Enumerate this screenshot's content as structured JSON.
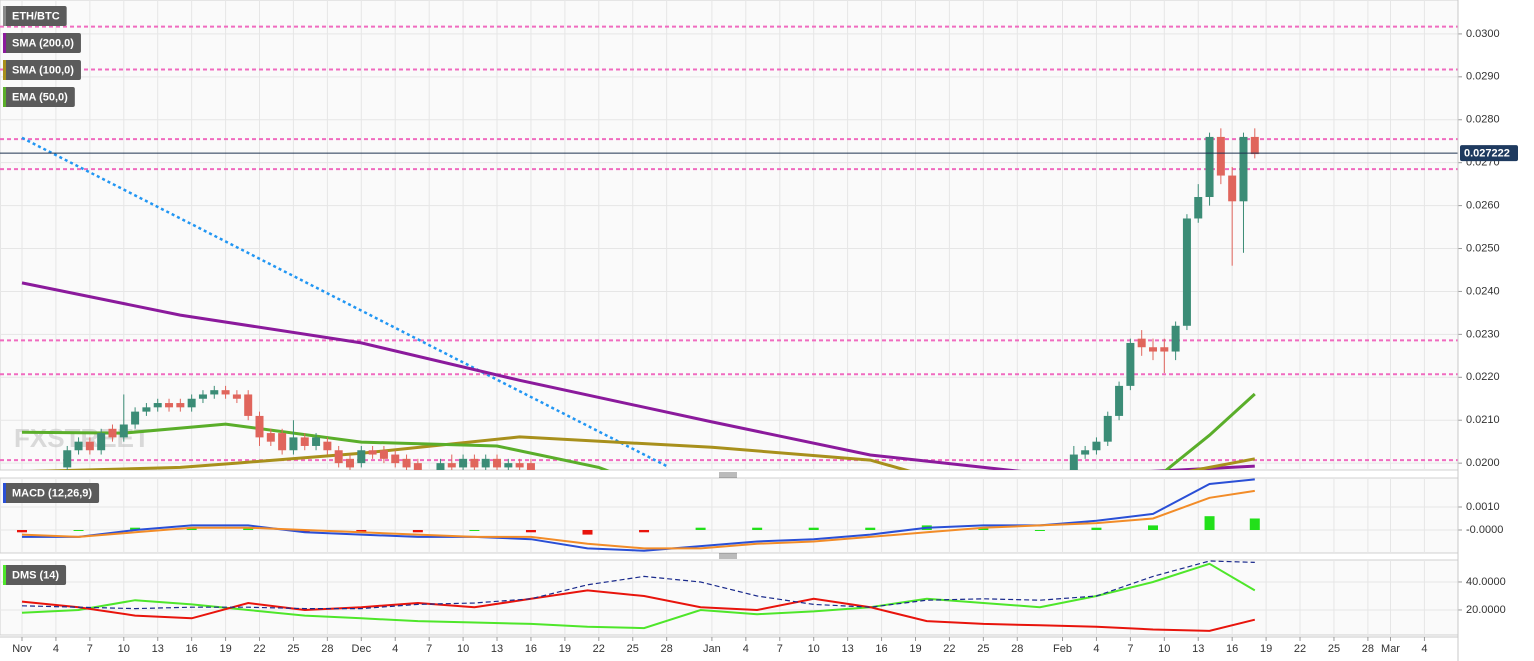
{
  "chart_data": [
    {
      "type": "candlestick",
      "title": "ETH/BTC",
      "watermark": "FXSTREET",
      "up_color": "#3b8c76",
      "down_color": "#e0655c",
      "ylim": [
        0.01984,
        0.03079
      ],
      "yticks": [
        {
          "value": 0.02,
          "label": "0.0200"
        },
        {
          "value": 0.021,
          "label": "0.0210"
        },
        {
          "value": 0.022,
          "label": "0.0220"
        },
        {
          "value": 0.023,
          "label": "0.0230"
        },
        {
          "value": 0.024,
          "label": "0.0240"
        },
        {
          "value": 0.025,
          "label": "0.0250"
        },
        {
          "value": 0.026,
          "label": "0.0260"
        },
        {
          "value": 0.027,
          "label": "0.0270"
        },
        {
          "value": 0.028,
          "label": "0.0280"
        },
        {
          "value": 0.029,
          "label": "0.0290"
        },
        {
          "value": 0.03,
          "label": "0.0300"
        }
      ],
      "x": [
        "Nov 5",
        "Nov 6",
        "Nov 7",
        "Nov 8",
        "Nov 9",
        "Nov 10",
        "Nov 11",
        "Nov 12",
        "Nov 13",
        "Nov 14",
        "Nov 15",
        "Nov 16",
        "Nov 17",
        "Nov 18",
        "Nov 19",
        "Nov 20",
        "Nov 21",
        "Nov 22",
        "Nov 23",
        "Nov 24",
        "Nov 25",
        "Nov 26",
        "Nov 27",
        "Nov 28",
        "Nov 29",
        "Nov 30",
        "Dec 1",
        "Dec 2",
        "Dec 3",
        "Dec 4",
        "Dec 5",
        "Dec 6",
        "Dec 8",
        "Dec 9",
        "Dec 10",
        "Dec 11",
        "Dec 12",
        "Dec 13",
        "Dec 14",
        "Dec 15",
        "Dec 16",
        "Feb 2",
        "Feb 3",
        "Feb 4",
        "Feb 5",
        "Feb 6",
        "Feb 7",
        "Feb 8",
        "Feb 9",
        "Feb 10",
        "Feb 11",
        "Feb 12",
        "Feb 13",
        "Feb 14",
        "Feb 15",
        "Feb 16",
        "Feb 17",
        "Feb 18"
      ],
      "ohlc": [
        [
          0.0199,
          0.0204,
          0.0198,
          0.0203
        ],
        [
          0.0203,
          0.0206,
          0.0202,
          0.0205
        ],
        [
          0.0205,
          0.0206,
          0.0202,
          0.0203
        ],
        [
          0.0203,
          0.0208,
          0.0202,
          0.0207
        ],
        [
          0.0208,
          0.0209,
          0.0205,
          0.0206
        ],
        [
          0.0206,
          0.0216,
          0.0205,
          0.0209
        ],
        [
          0.0209,
          0.0213,
          0.0208,
          0.0212
        ],
        [
          0.0212,
          0.0214,
          0.0211,
          0.0213
        ],
        [
          0.0213,
          0.0215,
          0.0212,
          0.0214
        ],
        [
          0.0214,
          0.0215,
          0.0212,
          0.0213
        ],
        [
          0.0214,
          0.0215,
          0.0212,
          0.0213
        ],
        [
          0.0213,
          0.0216,
          0.0212,
          0.0215
        ],
        [
          0.0215,
          0.0217,
          0.0214,
          0.0216
        ],
        [
          0.0216,
          0.0218,
          0.0215,
          0.0217
        ],
        [
          0.0217,
          0.0218,
          0.0215,
          0.0216
        ],
        [
          0.0216,
          0.0217,
          0.0214,
          0.0215
        ],
        [
          0.0216,
          0.0217,
          0.021,
          0.0211
        ],
        [
          0.0211,
          0.0212,
          0.0204,
          0.0206
        ],
        [
          0.0207,
          0.0208,
          0.0204,
          0.0205
        ],
        [
          0.0207,
          0.0208,
          0.0202,
          0.0203
        ],
        [
          0.0203,
          0.021,
          0.0202,
          0.0206
        ],
        [
          0.0206,
          0.0207,
          0.0203,
          0.0204
        ],
        [
          0.0204,
          0.0207,
          0.0203,
          0.0206
        ],
        [
          0.0205,
          0.0206,
          0.0202,
          0.0203
        ],
        [
          0.0203,
          0.0204,
          0.0199,
          0.02
        ],
        [
          0.0201,
          0.0202,
          0.0198,
          0.0199
        ],
        [
          0.02,
          0.0204,
          0.0199,
          0.0203
        ],
        [
          0.0203,
          0.0204,
          0.0201,
          0.0202
        ],
        [
          0.0203,
          0.0204,
          0.02,
          0.0201
        ],
        [
          0.0202,
          0.0203,
          0.0199,
          0.02
        ],
        [
          0.0201,
          0.0202,
          0.0198,
          0.0199
        ],
        [
          0.02,
          0.0201,
          0.0197,
          0.0198
        ],
        [
          0.0198,
          0.0201,
          0.0197,
          0.02
        ],
        [
          0.02,
          0.0202,
          0.0198,
          0.0199
        ],
        [
          0.0199,
          0.0202,
          0.0198,
          0.0201
        ],
        [
          0.0201,
          0.0202,
          0.0198,
          0.0199
        ],
        [
          0.0199,
          0.0202,
          0.0198,
          0.0201
        ],
        [
          0.0201,
          0.0202,
          0.0198,
          0.0199
        ],
        [
          0.0199,
          0.0201,
          0.0198,
          0.02
        ],
        [
          0.02,
          0.0201,
          0.0198,
          0.0199
        ],
        [
          0.02,
          0.0201,
          0.0197,
          0.0198
        ],
        [
          0.0198,
          0.0204,
          0.0197,
          0.0202
        ],
        [
          0.0202,
          0.0204,
          0.0201,
          0.0203
        ],
        [
          0.0203,
          0.0206,
          0.0202,
          0.0205
        ],
        [
          0.0205,
          0.0212,
          0.0204,
          0.0211
        ],
        [
          0.0211,
          0.0219,
          0.021,
          0.0218
        ],
        [
          0.0218,
          0.0229,
          0.0217,
          0.0228
        ],
        [
          0.0229,
          0.0231,
          0.0225,
          0.0227
        ],
        [
          0.0227,
          0.0229,
          0.0224,
          0.0226
        ],
        [
          0.0227,
          0.0229,
          0.0221,
          0.0226
        ],
        [
          0.0226,
          0.0233,
          0.0224,
          0.0232
        ],
        [
          0.0232,
          0.0258,
          0.0231,
          0.0257
        ],
        [
          0.0257,
          0.0265,
          0.0256,
          0.0262
        ],
        [
          0.0262,
          0.0277,
          0.026,
          0.0276
        ],
        [
          0.0276,
          0.0278,
          0.0265,
          0.0267
        ],
        [
          0.0267,
          0.0269,
          0.0246,
          0.0261
        ],
        [
          0.0261,
          0.0277,
          0.0249,
          0.0276
        ],
        [
          0.0276,
          0.0278,
          0.0271,
          0.0272
        ]
      ],
      "series": [
        {
          "name": "SMA (200,0)",
          "color": "#8b1a9c",
          "x": [
            "Nov 1",
            "Nov 15",
            "Dec 1",
            "Dec 15",
            "Jan 1",
            "Jan 15",
            "Feb 1",
            "Feb 18"
          ],
          "values": [
            0.0242,
            0.02345,
            0.0228,
            0.02193,
            0.02096,
            0.02019,
            0.0197,
            0.01993
          ]
        },
        {
          "name": "SMA (100,0)",
          "color": "#a8901c",
          "x": [
            "Nov 1",
            "Nov 15",
            "Nov 20",
            "Dec 1",
            "Dec 15",
            "Jan 1",
            "Jan 15",
            "Jan 20",
            "Feb 8",
            "Feb 14",
            "Feb 18"
          ],
          "values": [
            0.0198,
            0.0199,
            0.02,
            0.02023,
            0.02061,
            0.02037,
            0.02007,
            0.0197,
            0.0196,
            0.0199,
            0.0201
          ]
        },
        {
          "name": "EMA (50,0)",
          "color": "#5aae2a",
          "x": [
            "Nov 1",
            "Nov 10",
            "Nov 19",
            "Dec 1",
            "Dec 13",
            "Dec 22",
            "Dec 25",
            "Feb 10",
            "Feb 14",
            "Feb 18"
          ],
          "values": [
            0.02072,
            0.0207,
            0.02091,
            0.02049,
            0.0204,
            0.0199,
            0.0196,
            0.0198,
            0.02065,
            0.02161
          ]
        }
      ],
      "trendline": {
        "color": "#2196f3",
        "x": [
          "Nov 1",
          "Dec 28"
        ],
        "values": [
          0.02758,
          0.01993
        ]
      },
      "levels": [
        0.03017,
        0.02917,
        0.02755,
        0.02685,
        0.02286,
        0.02207,
        0.02007
      ],
      "level_color": "#f06bbf",
      "last_price": 0.027222
    },
    {
      "type": "macd",
      "title": "MACD (12,26,9)",
      "x": [
        "Nov 1",
        "Nov 6",
        "Nov 11",
        "Nov 16",
        "Nov 21",
        "Nov 26",
        "Dec 1",
        "Dec 6",
        "Dec 11",
        "Dec 16",
        "Dec 21",
        "Dec 26",
        "Dec 31",
        "Jan 5",
        "Jan 10",
        "Jan 15",
        "Jan 20",
        "Jan 25",
        "Jan 30",
        "Feb 4",
        "Feb 9",
        "Feb 14",
        "Feb 18"
      ],
      "ylim": [
        -0.001,
        0.00226
      ],
      "yticks": [
        {
          "value": 0.001,
          "label": "0.0010"
        },
        {
          "value": 0,
          "label": "-0.0000"
        }
      ],
      "lines": [
        {
          "color": "#2a4fd6",
          "values": [
            -0.0003,
            -0.0003,
            0.0,
            0.0002,
            0.0002,
            -0.0001,
            -0.0002,
            -0.0003,
            -0.0003,
            -0.0004,
            -0.0008,
            -0.0009,
            -0.0007,
            -0.0005,
            -0.0004,
            -0.0002,
            0.0001,
            0.0002,
            0.0002,
            0.0004,
            0.0007,
            0.002,
            0.0022
          ]
        },
        {
          "color": "#f28c28",
          "values": [
            -0.0002,
            -0.0003,
            -0.0001,
            0.0001,
            0.0001,
            0.0,
            -0.0001,
            -0.0002,
            -0.0003,
            -0.0003,
            -0.0006,
            -0.0008,
            -0.0008,
            -0.0006,
            -0.0005,
            -0.0003,
            -0.0001,
            0.0001,
            0.0002,
            0.0003,
            0.0005,
            0.0014,
            0.0017
          ]
        }
      ],
      "histogram": {
        "up_color": "#22e01a",
        "down_color": "#e8140c",
        "values": [
          -0.0001,
          0,
          0.0001,
          0.0001,
          0.0001,
          -0.0001,
          -0.0001,
          -0.0001,
          0,
          -0.0001,
          -0.0002,
          -0.0001,
          0.0001,
          0.0001,
          0.0001,
          0.0001,
          0.0002,
          0.0001,
          0,
          0.0001,
          0.0002,
          0.0006,
          0.0005
        ]
      }
    },
    {
      "type": "line",
      "title": "DMS (14)",
      "x": [
        "Nov 1",
        "Nov 6",
        "Nov 11",
        "Nov 16",
        "Nov 21",
        "Nov 26",
        "Dec 1",
        "Dec 6",
        "Dec 11",
        "Dec 16",
        "Dec 21",
        "Dec 26",
        "Dec 31",
        "Jan 5",
        "Jan 10",
        "Jan 15",
        "Jan 20",
        "Jan 25",
        "Jan 30",
        "Feb 4",
        "Feb 9",
        "Feb 14",
        "Feb 18"
      ],
      "ylim": [
        2.1,
        55.7
      ],
      "yticks": [
        {
          "value": 40,
          "label": "40.0000"
        },
        {
          "value": 20,
          "label": "20.0000"
        }
      ],
      "lines": [
        {
          "color": "#4ee62a",
          "dashed": false,
          "values": [
            18,
            20,
            27,
            24,
            20,
            16,
            14,
            12,
            11,
            10,
            8,
            7,
            20,
            17,
            19,
            22,
            28,
            25,
            22,
            30,
            40,
            53,
            34
          ]
        },
        {
          "color": "#e8140c",
          "dashed": false,
          "values": [
            26,
            22,
            16,
            14,
            25,
            20,
            22,
            25,
            22,
            28,
            34,
            30,
            22,
            20,
            28,
            22,
            12,
            10,
            9,
            8,
            6,
            5,
            13
          ]
        },
        {
          "color": "#1a2a8c",
          "dashed": true,
          "values": [
            23,
            22,
            21,
            22,
            22,
            21,
            21,
            24,
            25,
            28,
            38,
            44,
            40,
            30,
            24,
            22,
            27,
            28,
            27,
            30,
            44,
            55,
            54
          ]
        }
      ],
      "xticks": [
        {
          "value": "Nov 1",
          "label": "Nov"
        },
        {
          "value": "Nov 4",
          "label": "4"
        },
        {
          "value": "Nov 7",
          "label": "7"
        },
        {
          "value": "Nov 10",
          "label": "10"
        },
        {
          "value": "Nov 13",
          "label": "13"
        },
        {
          "value": "Nov 16",
          "label": "16"
        },
        {
          "value": "Nov 19",
          "label": "19"
        },
        {
          "value": "Nov 22",
          "label": "22"
        },
        {
          "value": "Nov 25",
          "label": "25"
        },
        {
          "value": "Nov 28",
          "label": "28"
        },
        {
          "value": "Dec 1",
          "label": "Dec"
        },
        {
          "value": "Dec 4",
          "label": "4"
        },
        {
          "value": "Dec 7",
          "label": "7"
        },
        {
          "value": "Dec 10",
          "label": "10"
        },
        {
          "value": "Dec 13",
          "label": "13"
        },
        {
          "value": "Dec 16",
          "label": "16"
        },
        {
          "value": "Dec 19",
          "label": "19"
        },
        {
          "value": "Dec 22",
          "label": "22"
        },
        {
          "value": "Dec 25",
          "label": "25"
        },
        {
          "value": "Dec 28",
          "label": "28"
        },
        {
          "value": "Jan 1",
          "label": "Jan"
        },
        {
          "value": "Jan 4",
          "label": "4"
        },
        {
          "value": "Jan 7",
          "label": "7"
        },
        {
          "value": "Jan 10",
          "label": "10"
        },
        {
          "value": "Jan 13",
          "label": "13"
        },
        {
          "value": "Jan 16",
          "label": "16"
        },
        {
          "value": "Jan 19",
          "label": "19"
        },
        {
          "value": "Jan 22",
          "label": "22"
        },
        {
          "value": "Jan 25",
          "label": "25"
        },
        {
          "value": "Jan 28",
          "label": "28"
        },
        {
          "value": "Feb 1",
          "label": "Feb"
        },
        {
          "value": "Feb 4",
          "label": "4"
        },
        {
          "value": "Feb 7",
          "label": "7"
        },
        {
          "value": "Feb 10",
          "label": "10"
        },
        {
          "value": "Feb 13",
          "label": "13"
        },
        {
          "value": "Feb 16",
          "label": "16"
        },
        {
          "value": "Feb 19",
          "label": "19"
        },
        {
          "value": "Feb 22",
          "label": "22"
        },
        {
          "value": "Feb 25",
          "label": "25"
        },
        {
          "value": "Feb 28",
          "label": "28"
        },
        {
          "value": "Mar 1",
          "label": "Mar"
        },
        {
          "value": "Mar 4",
          "label": "4"
        }
      ]
    }
  ]
}
